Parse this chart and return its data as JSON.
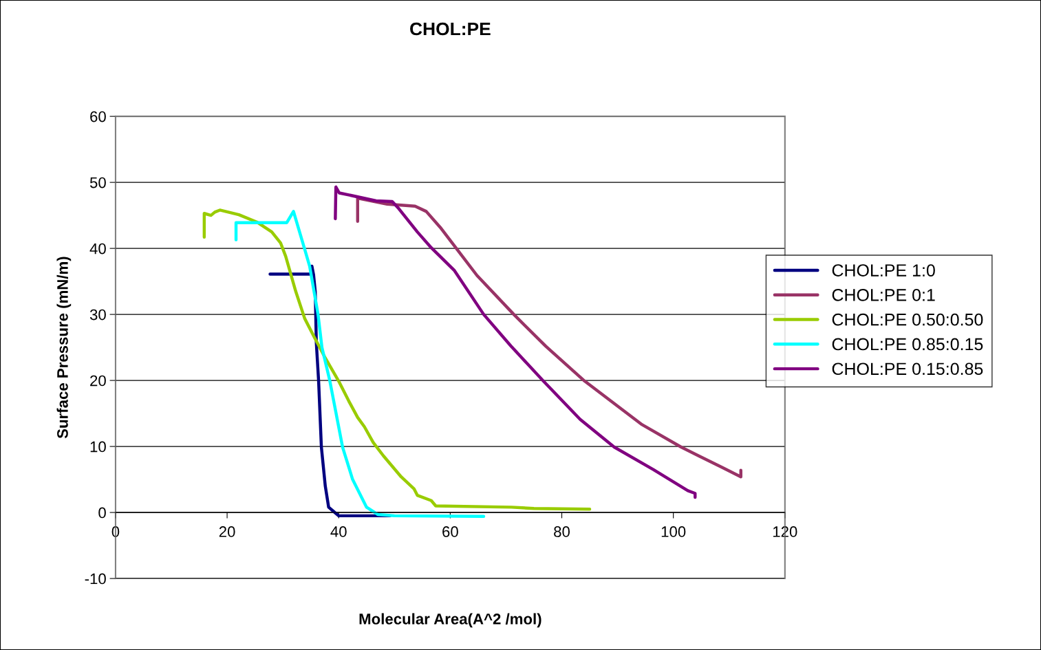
{
  "chart_data": {
    "type": "line",
    "title": "CHOL:PE",
    "xlabel": "Molecular Area(A^2 /mol)",
    "ylabel": "Surface Pressure (mN/m)",
    "xlim": [
      0,
      120
    ],
    "xticks": [
      0,
      20,
      40,
      60,
      80,
      100,
      120
    ],
    "ylim": [
      -10,
      60
    ],
    "yticks": [
      -10,
      0,
      10,
      20,
      30,
      40,
      50,
      60
    ],
    "grid": "y",
    "legend": "right",
    "marker": "none",
    "line_style": "solid",
    "series": [
      {
        "name": "CHOL:PE 1:0",
        "color": "#000080",
        "x": [
          49.2,
          40.0,
          39.3,
          38.2,
          37.6,
          36.9,
          36.4,
          36.0,
          35.8,
          35.5,
          35.2,
          35.0,
          27.7
        ],
        "values": [
          -0.5,
          -0.5,
          0,
          0.8,
          4.0,
          9.9,
          20.0,
          25.6,
          33.5,
          36.0,
          37.3,
          36.1,
          36.1
        ]
      },
      {
        "name": "CHOL:PE 0:1",
        "color": "#993366",
        "x": [
          112.1,
          112.1,
          108.8,
          101.4,
          94.4,
          84.1,
          77.1,
          71.4,
          64.8,
          61.0,
          58.2,
          55.7,
          53.7,
          48.7,
          44.6,
          43.4,
          43.4
        ],
        "values": [
          6.4,
          5.4,
          6.8,
          9.9,
          13.3,
          19.9,
          25.2,
          30.0,
          35.9,
          40.1,
          43.2,
          45.6,
          46.4,
          46.7,
          47.4,
          47.6,
          44.1
        ]
      },
      {
        "name": "CHOL:PE 0.50:0.50",
        "color": "#99cc00",
        "x": [
          85.0,
          75.0,
          71.0,
          57.4,
          56.6,
          54.1,
          53.5,
          51.2,
          48.0,
          46.2,
          44.6,
          43.4,
          41.8,
          40.0,
          37.6,
          35.6,
          33.9,
          32.3,
          30.5,
          29.6,
          28.0,
          25.3,
          22.1,
          18.7,
          17.8,
          17.1,
          15.9,
          15.9
        ],
        "values": [
          0.5,
          0.6,
          0.8,
          1.0,
          1.8,
          2.6,
          3.6,
          5.4,
          8.6,
          10.6,
          13.0,
          14.4,
          16.9,
          19.9,
          23.4,
          26.6,
          29.4,
          33.5,
          38.8,
          40.8,
          42.5,
          44.0,
          45.1,
          45.8,
          45.5,
          45.0,
          45.3,
          41.7
        ]
      },
      {
        "name": "CHOL:PE 0.85:0.15",
        "color": "#00ffff",
        "x": [
          66.0,
          50.0,
          47.0,
          45.0,
          42.5,
          40.7,
          38.4,
          37.0,
          36.3,
          34.8,
          33.9,
          31.9,
          30.7,
          21.6,
          21.6
        ],
        "values": [
          -0.6,
          -0.5,
          -0.3,
          0.8,
          5.0,
          9.9,
          20.0,
          25.0,
          30.0,
          37.3,
          39.9,
          45.6,
          43.9,
          43.9,
          41.3
        ]
      },
      {
        "name": "CHOL:PE 0.15:0.85",
        "color": "#800080",
        "x": [
          103.9,
          103.9,
          102.6,
          96.4,
          89.4,
          83.3,
          76.7,
          70.9,
          66.0,
          60.7,
          56.6,
          54.1,
          50.8,
          49.6,
          46.7,
          41.8,
          40.1,
          39.5,
          39.4
        ],
        "values": [
          2.3,
          2.9,
          3.3,
          6.5,
          9.9,
          14.1,
          19.9,
          25.2,
          30.0,
          36.7,
          40.1,
          42.5,
          46.0,
          47.1,
          47.2,
          48.1,
          48.4,
          49.3,
          44.5
        ]
      }
    ]
  }
}
